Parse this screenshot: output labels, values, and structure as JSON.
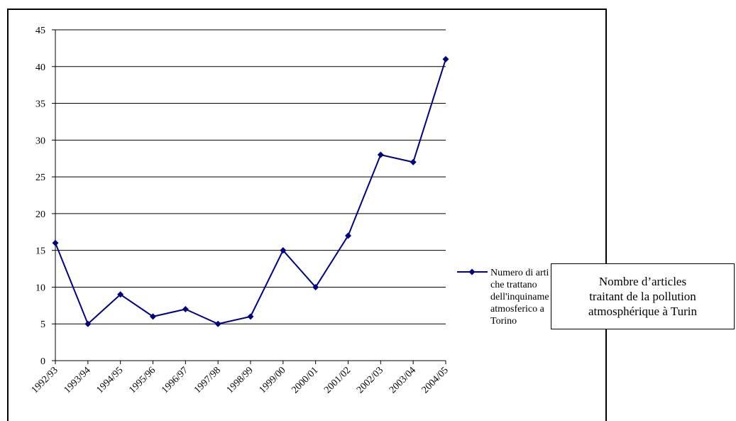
{
  "chart_data": {
    "type": "line",
    "categories": [
      "1992/93",
      "1993/94",
      "1994/95",
      "1995/96",
      "1996/97",
      "1997/98",
      "1998/99",
      "1999/00",
      "2000/01",
      "2001/02",
      "2002/03",
      "2003/04",
      "2004/05"
    ],
    "series": [
      {
        "name": "Numero di articoli che trattano dell'inquinamento atmosferico a Torino",
        "values": [
          16,
          5,
          9,
          6,
          7,
          5,
          6,
          15,
          10,
          17,
          28,
          27,
          41
        ],
        "color": "#000080",
        "marker": "diamond"
      }
    ],
    "ylim": [
      0,
      45
    ],
    "yticks": [
      0,
      5,
      10,
      15,
      20,
      25,
      30,
      35,
      40,
      45
    ],
    "grid": true,
    "legend_position": "right",
    "legend_visible_lines": [
      "Numero di arti",
      "che trattano",
      "dell'inquiname",
      "atmosferico a",
      "Torino"
    ]
  },
  "caption": {
    "lines": [
      "Nombre d’articles",
      "traitant de la pollution",
      "atmosphérique à Turin"
    ]
  }
}
